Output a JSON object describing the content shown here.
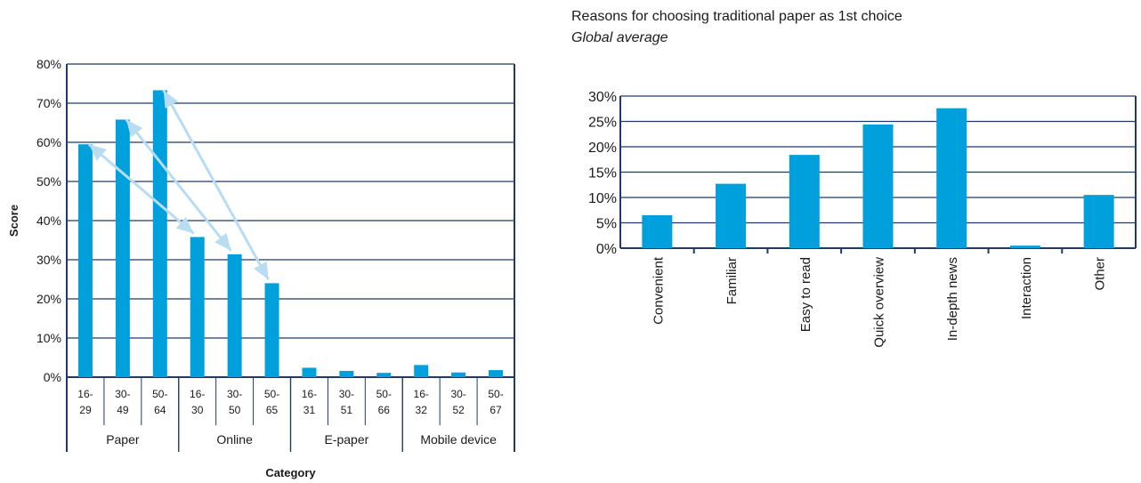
{
  "chart_data": [
    {
      "type": "bar",
      "title": "",
      "xlabel": "Category",
      "ylabel": "Score",
      "ylim": [
        0,
        80
      ],
      "y_ticks": [
        "0%",
        "10%",
        "20%",
        "30%",
        "40%",
        "50%",
        "60%",
        "70%",
        "80%"
      ],
      "grid": true,
      "colors": {
        "bar": "#00a0dc",
        "axis": "#1f3a66",
        "arrow": "#b8dcf2"
      },
      "groups": [
        {
          "name": "Paper",
          "bars": [
            {
              "label_top": "16-",
              "label_bottom": "29",
              "value": 59.5
            },
            {
              "label_top": "30-",
              "label_bottom": "49",
              "value": 65.8
            },
            {
              "label_top": "50-",
              "label_bottom": "64",
              "value": 73.3
            }
          ]
        },
        {
          "name": "Online",
          "bars": [
            {
              "label_top": "16-",
              "label_bottom": "30",
              "value": 35.8
            },
            {
              "label_top": "30-",
              "label_bottom": "50",
              "value": 31.4
            },
            {
              "label_top": "50-",
              "label_bottom": "65",
              "value": 24.0
            }
          ]
        },
        {
          "name": "E-paper",
          "bars": [
            {
              "label_top": "16-",
              "label_bottom": "31",
              "value": 2.4
            },
            {
              "label_top": "30-",
              "label_bottom": "51",
              "value": 1.6
            },
            {
              "label_top": "50-",
              "label_bottom": "66",
              "value": 1.1
            }
          ]
        },
        {
          "name": "Mobile device",
          "bars": [
            {
              "label_top": "16-",
              "label_bottom": "32",
              "value": 3.1
            },
            {
              "label_top": "30-",
              "label_bottom": "52",
              "value": 1.2
            },
            {
              "label_top": "50-",
              "label_bottom": "67",
              "value": 1.8
            }
          ]
        }
      ],
      "arrows": [
        [
          0,
          3
        ],
        [
          1,
          4
        ],
        [
          2,
          5
        ]
      ]
    },
    {
      "type": "bar",
      "title": "Reasons for choosing traditional paper as 1st choice",
      "subtitle": "Global average",
      "xlabel": "",
      "ylabel": "",
      "ylim": [
        0,
        30
      ],
      "y_ticks": [
        "0%",
        "5%",
        "10%",
        "15%",
        "20%",
        "25%",
        "30%"
      ],
      "grid": true,
      "categories": [
        "Convenient",
        "Familiar",
        "Easy to read",
        "Quick overview",
        "In-depth news",
        "Interaction",
        "Other"
      ],
      "values": [
        6.5,
        12.7,
        18.4,
        24.4,
        27.6,
        0.5,
        10.5
      ]
    }
  ]
}
